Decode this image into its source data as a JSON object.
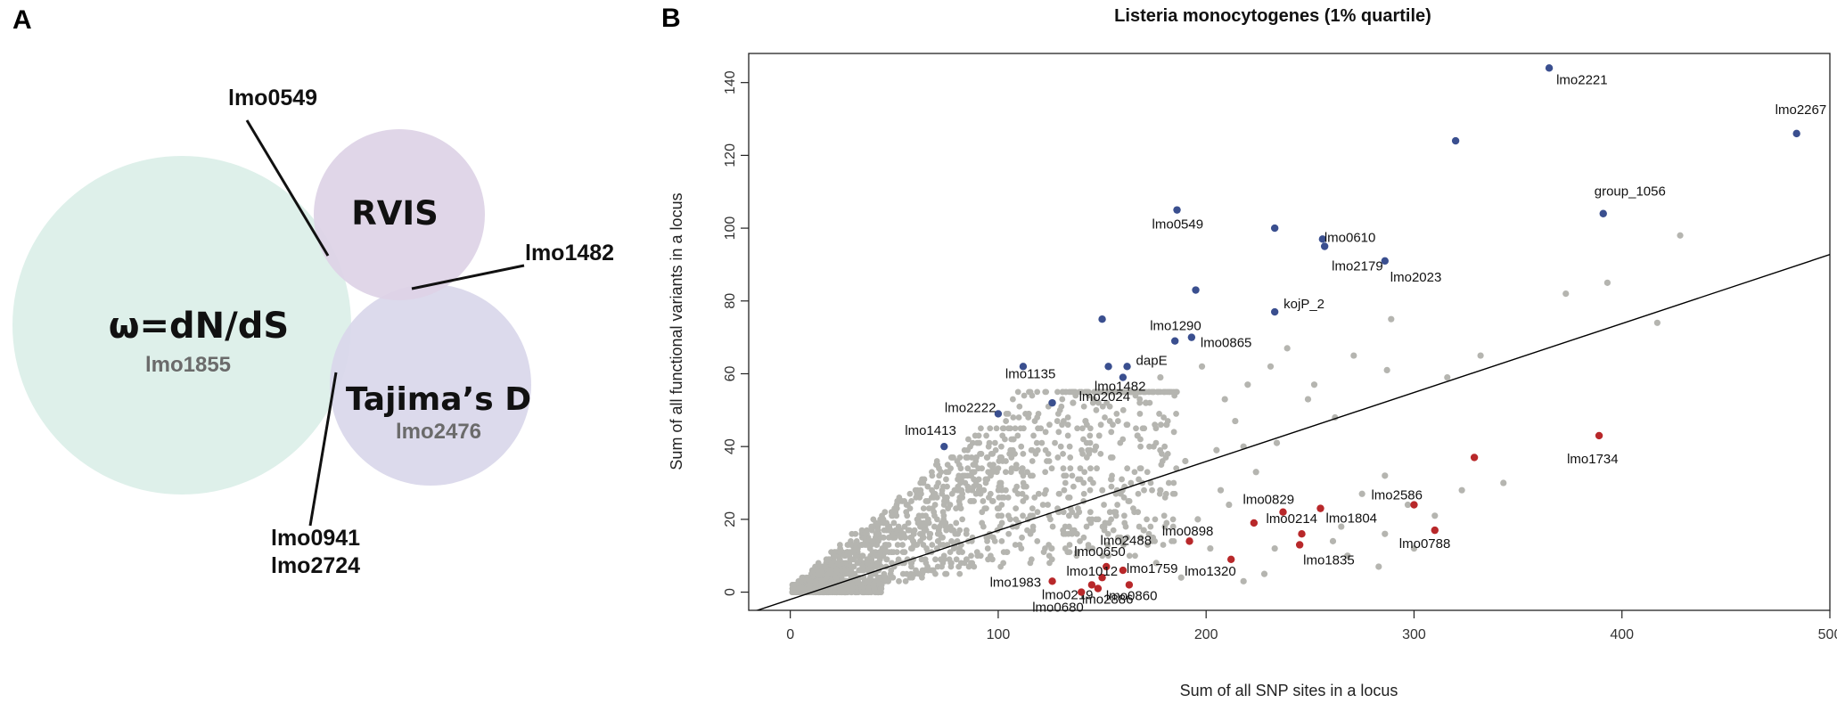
{
  "panel_a": {
    "letter": "A",
    "circles": {
      "omega_title": "ω=dN/dS",
      "omega_gene": "lmo1855",
      "rvis_title": "RVIS",
      "tajima_title": "Tajima’s D",
      "tajima_gene": "lmo2476"
    },
    "callouts": {
      "c1": "lmo0549",
      "c2": "lmo1482",
      "c3_line1": "lmo0941",
      "c3_line2": "lmo2724"
    },
    "colors": {
      "omega": "#dcefe9",
      "rvis": "#ddd3e6",
      "tajima": "#d9d7ea"
    }
  },
  "panel_b": {
    "letter": "B"
  },
  "chart_data": {
    "type": "scatter",
    "title": "Listeria monocytogenes (1% quartile)",
    "xlabel": "Sum of all SNP sites in a locus",
    "ylabel": "Sum of all functional variants in a locus",
    "xlim": [
      -20,
      500
    ],
    "ylim": [
      -5,
      148
    ],
    "xticks": [
      0,
      100,
      200,
      300,
      400,
      500
    ],
    "yticks": [
      0,
      20,
      40,
      60,
      80,
      100,
      120,
      140
    ],
    "regression_line": {
      "intercept": -2,
      "slope": 0.1895
    },
    "colors": {
      "background": "#b5b5b0",
      "high": "#3a4f8f",
      "low": "#b8282a"
    },
    "labeled_points": [
      {
        "name": "lmo2221",
        "x": 365,
        "y": 144,
        "group": "high"
      },
      {
        "name": "lmo2267",
        "x": 484,
        "y": 126,
        "group": "high"
      },
      {
        "name": "",
        "x": 320,
        "y": 124,
        "group": "high"
      },
      {
        "name": "group_1056",
        "x": 391,
        "y": 104,
        "group": "high"
      },
      {
        "name": "lmo0549",
        "x": 186,
        "y": 105,
        "group": "high"
      },
      {
        "name": "",
        "x": 233,
        "y": 100,
        "group": "high"
      },
      {
        "name": "lmo0610",
        "x": 256,
        "y": 97,
        "group": "high"
      },
      {
        "name": "lmo2179",
        "x": 257,
        "y": 95,
        "group": "high"
      },
      {
        "name": "lmo2023",
        "x": 286,
        "y": 91,
        "group": "high"
      },
      {
        "name": "",
        "x": 195,
        "y": 83,
        "group": "high"
      },
      {
        "name": "kojP_2",
        "x": 233,
        "y": 77,
        "group": "high"
      },
      {
        "name": "",
        "x": 150,
        "y": 75,
        "group": "high"
      },
      {
        "name": "lmo1290",
        "x": 185,
        "y": 69,
        "group": "high"
      },
      {
        "name": "lmo0865",
        "x": 193,
        "y": 70,
        "group": "high"
      },
      {
        "name": "lmo1135",
        "x": 112,
        "y": 62,
        "group": "high"
      },
      {
        "name": "dapE",
        "x": 162,
        "y": 62,
        "group": "high"
      },
      {
        "name": "",
        "x": 153,
        "y": 62,
        "group": "high"
      },
      {
        "name": "lmo1482",
        "x": 160,
        "y": 59,
        "group": "high"
      },
      {
        "name": "lmo2222",
        "x": 100,
        "y": 49,
        "group": "high"
      },
      {
        "name": "lmo2024",
        "x": 126,
        "y": 52,
        "group": "high"
      },
      {
        "name": "lmo1413",
        "x": 74,
        "y": 40,
        "group": "high"
      },
      {
        "name": "lmo1734",
        "x": 389,
        "y": 43,
        "group": "low"
      },
      {
        "name": "",
        "x": 329,
        "y": 37,
        "group": "low"
      },
      {
        "name": "lmo2586",
        "x": 300,
        "y": 24,
        "group": "low"
      },
      {
        "name": "lmo0788",
        "x": 310,
        "y": 17,
        "group": "low"
      },
      {
        "name": "lmo0829",
        "x": 237,
        "y": 22,
        "group": "low"
      },
      {
        "name": "lmo1804",
        "x": 255,
        "y": 23,
        "group": "low"
      },
      {
        "name": "lmo0214",
        "x": 246,
        "y": 16,
        "group": "low"
      },
      {
        "name": "lmo1835",
        "x": 245,
        "y": 13,
        "group": "low"
      },
      {
        "name": "lmo0898",
        "x": 223,
        "y": 19,
        "group": "low"
      },
      {
        "name": "lmo2488",
        "x": 192,
        "y": 14,
        "group": "low"
      },
      {
        "name": "lmo1320",
        "x": 212,
        "y": 9,
        "group": "low"
      },
      {
        "name": "lmo0650",
        "x": 152,
        "y": 7,
        "group": "low"
      },
      {
        "name": "lmo1759",
        "x": 160,
        "y": 6,
        "group": "low"
      },
      {
        "name": "lmo1983",
        "x": 126,
        "y": 3,
        "group": "low"
      },
      {
        "name": "lmo1012",
        "x": 150,
        "y": 4,
        "group": "low"
      },
      {
        "name": "lmo0219",
        "x": 145,
        "y": 2,
        "group": "low"
      },
      {
        "name": "lmo0860",
        "x": 163,
        "y": 2,
        "group": "low"
      },
      {
        "name": "lmo2886",
        "x": 148,
        "y": 1,
        "group": "low"
      },
      {
        "name": "lmo0680",
        "x": 140,
        "y": 0,
        "group": "low"
      }
    ],
    "background_points_note": "",
    "background_points": [
      [
        428,
        98
      ],
      [
        393,
        85
      ],
      [
        417,
        74
      ],
      [
        373,
        82
      ],
      [
        332,
        65
      ],
      [
        316,
        59
      ],
      [
        289,
        75
      ],
      [
        287,
        61
      ],
      [
        271,
        65
      ],
      [
        252,
        57
      ],
      [
        249,
        53
      ],
      [
        262,
        48
      ],
      [
        234,
        41
      ],
      [
        239,
        67
      ],
      [
        220,
        57
      ],
      [
        231,
        62
      ],
      [
        214,
        47
      ],
      [
        198,
        62
      ],
      [
        209,
        53
      ],
      [
        218,
        40
      ],
      [
        205,
        39
      ],
      [
        178,
        59
      ],
      [
        164,
        55
      ],
      [
        171,
        52
      ],
      [
        181,
        46
      ],
      [
        167,
        43
      ],
      [
        142,
        47
      ],
      [
        136,
        52
      ],
      [
        147,
        40
      ],
      [
        286,
        32
      ],
      [
        275,
        27
      ],
      [
        297,
        24
      ],
      [
        323,
        28
      ],
      [
        343,
        30
      ],
      [
        310,
        21
      ],
      [
        265,
        18
      ],
      [
        286,
        16
      ],
      [
        300,
        12
      ],
      [
        268,
        10
      ],
      [
        283,
        7
      ],
      [
        261,
        14
      ],
      [
        233,
        12
      ],
      [
        228,
        5
      ],
      [
        218,
        3
      ],
      [
        207,
        28
      ],
      [
        224,
        33
      ],
      [
        190,
        36
      ],
      [
        211,
        24
      ],
      [
        196,
        20
      ],
      [
        178,
        28
      ],
      [
        176,
        8
      ],
      [
        188,
        4
      ],
      [
        202,
        12
      ],
      [
        170,
        17
      ]
    ]
  }
}
